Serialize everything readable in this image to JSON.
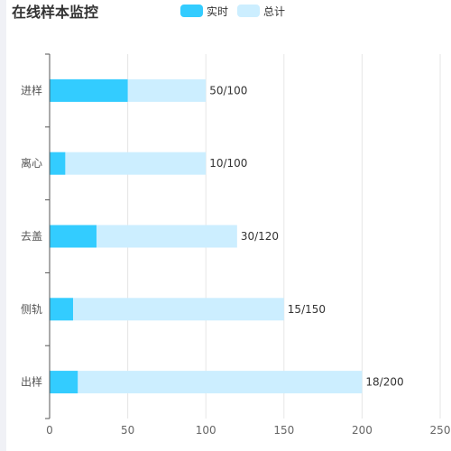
{
  "title": "在线样本监控",
  "legend": [
    {
      "label": "实时",
      "color": "#33ccff"
    },
    {
      "label": "总计",
      "color": "#cceeff"
    }
  ],
  "chart_data": {
    "type": "bar",
    "orientation": "horizontal",
    "stacked": "overlap",
    "categories": [
      "进样",
      "离心",
      "去盖",
      "侧轨",
      "出样"
    ],
    "series": [
      {
        "name": "实时",
        "values": [
          50,
          10,
          30,
          15,
          18
        ],
        "color": "#33ccff"
      },
      {
        "name": "总计",
        "values": [
          100,
          100,
          120,
          150,
          200
        ],
        "color": "#cceeff"
      }
    ],
    "data_labels": [
      "50/100",
      "10/100",
      "30/120",
      "15/150",
      "18/200"
    ],
    "xlim": [
      0,
      250
    ],
    "xticks": [
      0,
      50,
      100,
      150,
      200,
      250
    ],
    "grid": true,
    "legend_position": "top-center"
  }
}
